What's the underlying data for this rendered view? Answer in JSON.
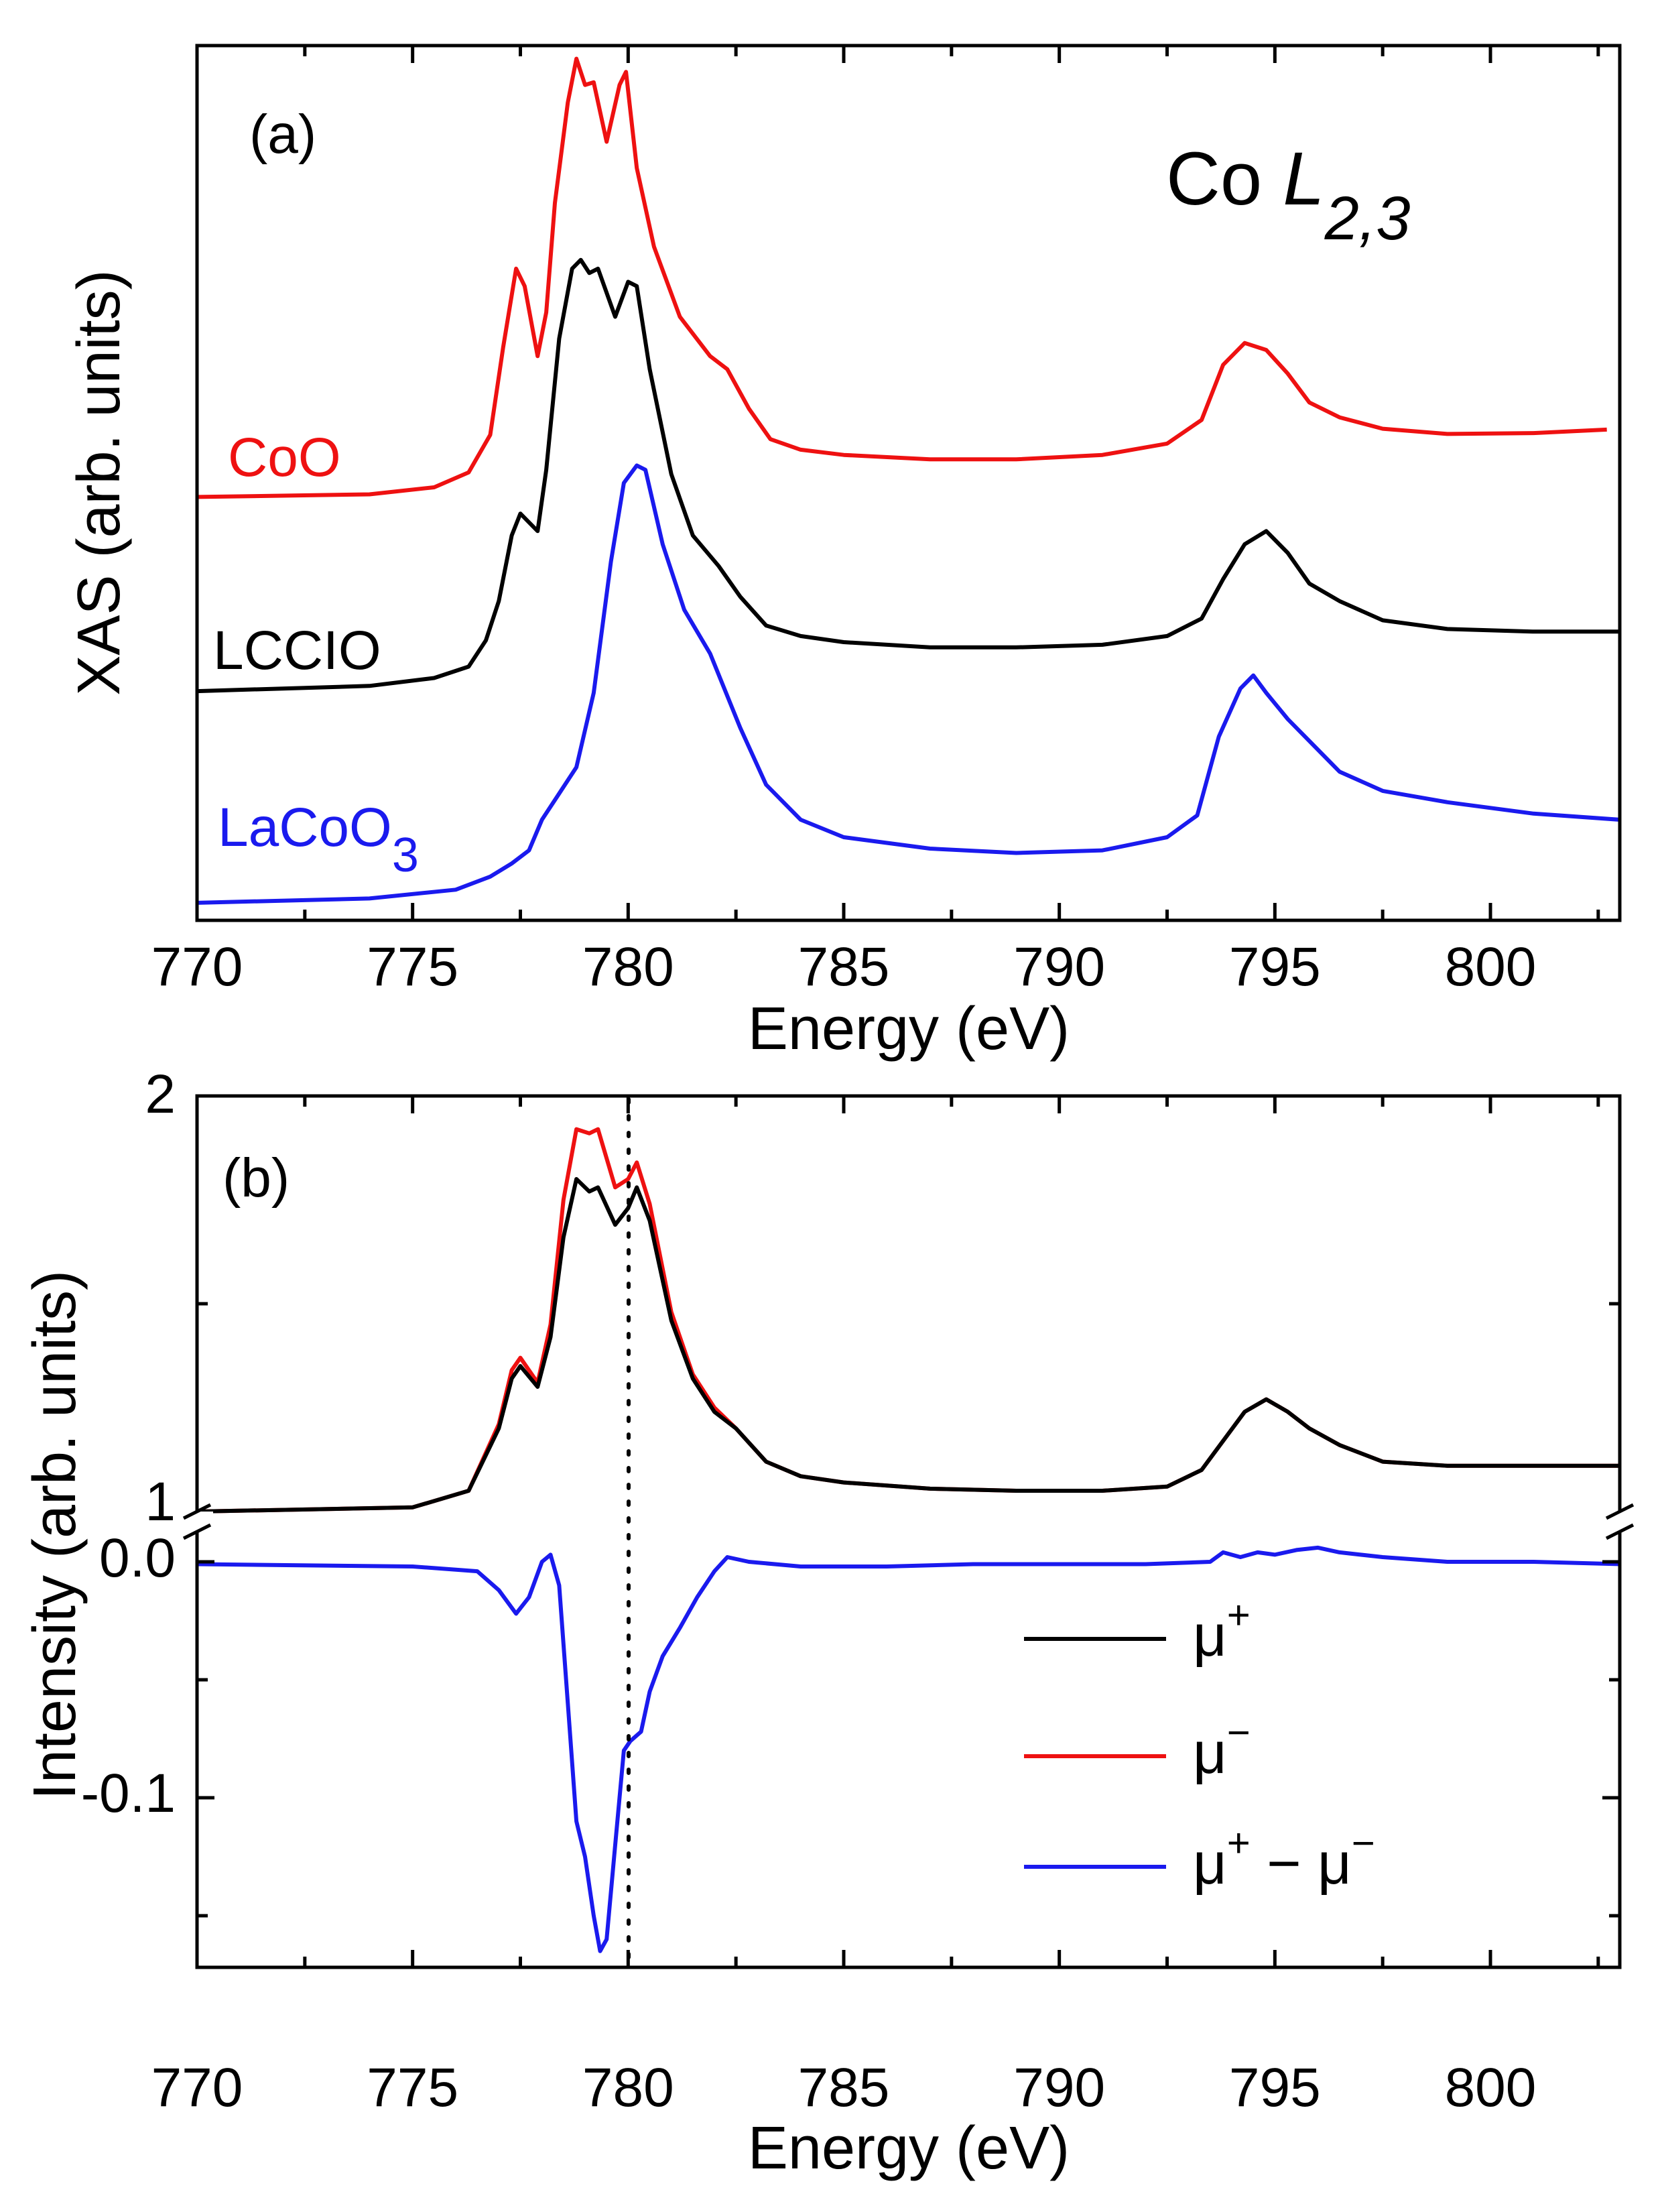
{
  "chart_data": [
    {
      "panel_label": "(a)",
      "type": "line",
      "title": "Co L2,3",
      "title_main": "Co ",
      "title_italic": "L",
      "title_sub": "2,3",
      "xlabel": "Energy (eV)",
      "ylabel": "XAS (arb. units)",
      "xlim": [
        770,
        803
      ],
      "ylim": [
        0,
        1
      ],
      "x_ticks": [
        770,
        775,
        780,
        785,
        790,
        795,
        800
      ],
      "x_tick_labels": [
        "770",
        "775",
        "780",
        "785",
        "790",
        "795",
        "800"
      ],
      "y_tick_labels_shown": false,
      "series": [
        {
          "name": "CoO",
          "label_main": "CoO",
          "label_sub": "",
          "color": "#ee1111",
          "points": [
            [
              770,
              0.484
            ],
            [
              774,
              0.487
            ],
            [
              775.5,
              0.495
            ],
            [
              776.3,
              0.512
            ],
            [
              776.8,
              0.555
            ],
            [
              777.1,
              0.655
            ],
            [
              777.4,
              0.745
            ],
            [
              777.6,
              0.725
            ],
            [
              777.9,
              0.645
            ],
            [
              778.1,
              0.695
            ],
            [
              778.3,
              0.82
            ],
            [
              778.6,
              0.935
            ],
            [
              778.8,
              0.985
            ],
            [
              779.0,
              0.955
            ],
            [
              779.2,
              0.958
            ],
            [
              779.5,
              0.89
            ],
            [
              779.8,
              0.955
            ],
            [
              779.95,
              0.97
            ],
            [
              780.2,
              0.86
            ],
            [
              780.6,
              0.77
            ],
            [
              781.2,
              0.69
            ],
            [
              781.9,
              0.645
            ],
            [
              782.3,
              0.63
            ],
            [
              782.8,
              0.585
            ],
            [
              783.3,
              0.55
            ],
            [
              784,
              0.538
            ],
            [
              785,
              0.532
            ],
            [
              787,
              0.527
            ],
            [
              789,
              0.527
            ],
            [
              791,
              0.532
            ],
            [
              792.5,
              0.545
            ],
            [
              793.3,
              0.572
            ],
            [
              793.8,
              0.635
            ],
            [
              794.3,
              0.66
            ],
            [
              794.8,
              0.652
            ],
            [
              795.3,
              0.625
            ],
            [
              795.8,
              0.592
            ],
            [
              796.5,
              0.575
            ],
            [
              797.5,
              0.562
            ],
            [
              799,
              0.556
            ],
            [
              801,
              0.557
            ],
            [
              802.7,
              0.561
            ]
          ]
        },
        {
          "name": "LCCIO",
          "label_main": "LCCIO",
          "label_sub": "",
          "color": "#000000",
          "points": [
            [
              770,
              0.262
            ],
            [
              774,
              0.268
            ],
            [
              775.5,
              0.277
            ],
            [
              776.3,
              0.29
            ],
            [
              776.7,
              0.32
            ],
            [
              777.0,
              0.365
            ],
            [
              777.3,
              0.44
            ],
            [
              777.5,
              0.465
            ],
            [
              777.9,
              0.445
            ],
            [
              778.1,
              0.515
            ],
            [
              778.4,
              0.665
            ],
            [
              778.7,
              0.745
            ],
            [
              778.9,
              0.755
            ],
            [
              779.1,
              0.74
            ],
            [
              779.3,
              0.745
            ],
            [
              779.7,
              0.69
            ],
            [
              780.0,
              0.73
            ],
            [
              780.2,
              0.725
            ],
            [
              780.5,
              0.63
            ],
            [
              781.0,
              0.51
            ],
            [
              781.5,
              0.44
            ],
            [
              782.1,
              0.405
            ],
            [
              782.6,
              0.37
            ],
            [
              783.2,
              0.337
            ],
            [
              784,
              0.325
            ],
            [
              785,
              0.318
            ],
            [
              787,
              0.312
            ],
            [
              789,
              0.312
            ],
            [
              791,
              0.315
            ],
            [
              792.5,
              0.325
            ],
            [
              793.3,
              0.345
            ],
            [
              793.8,
              0.39
            ],
            [
              794.3,
              0.43
            ],
            [
              794.8,
              0.445
            ],
            [
              795.3,
              0.42
            ],
            [
              795.8,
              0.385
            ],
            [
              796.5,
              0.365
            ],
            [
              797.5,
              0.343
            ],
            [
              799,
              0.333
            ],
            [
              801,
              0.33
            ],
            [
              803,
              0.33
            ]
          ]
        },
        {
          "name": "LaCoO3",
          "label_main": "LaCoO",
          "label_sub": "3",
          "color": "#1a1aee",
          "points": [
            [
              770,
              0.02
            ],
            [
              774,
              0.025
            ],
            [
              776,
              0.035
            ],
            [
              776.8,
              0.05
            ],
            [
              777.3,
              0.065
            ],
            [
              777.7,
              0.08
            ],
            [
              778.0,
              0.115
            ],
            [
              778.4,
              0.145
            ],
            [
              778.8,
              0.175
            ],
            [
              779.2,
              0.26
            ],
            [
              779.6,
              0.41
            ],
            [
              779.9,
              0.5
            ],
            [
              780.2,
              0.52
            ],
            [
              780.4,
              0.515
            ],
            [
              780.8,
              0.43
            ],
            [
              781.3,
              0.355
            ],
            [
              781.9,
              0.305
            ],
            [
              782.6,
              0.22
            ],
            [
              783.2,
              0.155
            ],
            [
              784,
              0.115
            ],
            [
              785,
              0.095
            ],
            [
              787,
              0.082
            ],
            [
              789,
              0.077
            ],
            [
              791,
              0.08
            ],
            [
              792.5,
              0.095
            ],
            [
              793.2,
              0.12
            ],
            [
              793.7,
              0.21
            ],
            [
              794.2,
              0.265
            ],
            [
              794.5,
              0.28
            ],
            [
              794.8,
              0.26
            ],
            [
              795.3,
              0.23
            ],
            [
              795.8,
              0.205
            ],
            [
              796.5,
              0.17
            ],
            [
              797.5,
              0.148
            ],
            [
              799,
              0.135
            ],
            [
              801,
              0.122
            ],
            [
              803,
              0.115
            ]
          ]
        }
      ]
    },
    {
      "panel_label": "(b)",
      "type": "line",
      "title": "",
      "xlabel": "Energy (eV)",
      "ylabel": "Intensity (arb. units)",
      "xlim": [
        770,
        803
      ],
      "x_ticks": [
        770,
        775,
        780,
        785,
        790,
        795,
        800
      ],
      "x_tick_labels": [
        "770",
        "775",
        "780",
        "785",
        "790",
        "795",
        "800"
      ],
      "axis_break": true,
      "upper_ylim": [
        1,
        2
      ],
      "upper_y_tick_labels": [
        "1",
        "2"
      ],
      "lower_ylim": [
        -0.17,
        0.01
      ],
      "lower_y_tick_labels": [
        "0.0",
        "-0.1"
      ],
      "reference_line": {
        "x": 780,
        "style": "dotted"
      },
      "legend_position": "bottom-right",
      "series": [
        {
          "name": "μ+",
          "legend_main": "μ",
          "legend_sup": "+",
          "color": "#000000",
          "axis": "upper",
          "points": [
            [
              770,
              1.0
            ],
            [
              775,
              1.01
            ],
            [
              776.3,
              1.05
            ],
            [
              777.0,
              1.2
            ],
            [
              777.3,
              1.32
            ],
            [
              777.5,
              1.35
            ],
            [
              777.9,
              1.3
            ],
            [
              778.2,
              1.42
            ],
            [
              778.5,
              1.66
            ],
            [
              778.8,
              1.8
            ],
            [
              779.1,
              1.77
            ],
            [
              779.3,
              1.78
            ],
            [
              779.7,
              1.69
            ],
            [
              780.0,
              1.73
            ],
            [
              780.2,
              1.78
            ],
            [
              780.5,
              1.7
            ],
            [
              781.0,
              1.46
            ],
            [
              781.5,
              1.32
            ],
            [
              782.0,
              1.24
            ],
            [
              782.5,
              1.2
            ],
            [
              783.2,
              1.12
            ],
            [
              784,
              1.085
            ],
            [
              785,
              1.07
            ],
            [
              787,
              1.055
            ],
            [
              789,
              1.05
            ],
            [
              791,
              1.05
            ],
            [
              792.5,
              1.06
            ],
            [
              793.3,
              1.1
            ],
            [
              793.8,
              1.17
            ],
            [
              794.3,
              1.24
            ],
            [
              794.8,
              1.27
            ],
            [
              795.3,
              1.24
            ],
            [
              795.8,
              1.2
            ],
            [
              796.5,
              1.16
            ],
            [
              797.5,
              1.12
            ],
            [
              799,
              1.11
            ],
            [
              801,
              1.11
            ],
            [
              803,
              1.11
            ]
          ]
        },
        {
          "name": "μ−",
          "legend_main": "μ",
          "legend_sup": "−",
          "color": "#ee1111",
          "axis": "upper",
          "points": [
            [
              770,
              1.0
            ],
            [
              775,
              1.01
            ],
            [
              776.3,
              1.05
            ],
            [
              777.0,
              1.21
            ],
            [
              777.3,
              1.34
            ],
            [
              777.5,
              1.37
            ],
            [
              777.9,
              1.31
            ],
            [
              778.2,
              1.45
            ],
            [
              778.5,
              1.75
            ],
            [
              778.8,
              1.92
            ],
            [
              779.1,
              1.91
            ],
            [
              779.3,
              1.92
            ],
            [
              779.7,
              1.78
            ],
            [
              780.0,
              1.8
            ],
            [
              780.2,
              1.84
            ],
            [
              780.5,
              1.74
            ],
            [
              781.0,
              1.48
            ],
            [
              781.5,
              1.33
            ],
            [
              782.0,
              1.25
            ],
            [
              782.5,
              1.2
            ],
            [
              783.2,
              1.12
            ],
            [
              784,
              1.085
            ],
            [
              785,
              1.07
            ],
            [
              787,
              1.055
            ],
            [
              789,
              1.05
            ],
            [
              791,
              1.05
            ],
            [
              792.5,
              1.06
            ],
            [
              793.3,
              1.1
            ],
            [
              793.8,
              1.17
            ],
            [
              794.3,
              1.24
            ],
            [
              794.8,
              1.27
            ],
            [
              795.3,
              1.24
            ],
            [
              795.8,
              1.2
            ],
            [
              796.5,
              1.16
            ],
            [
              797.5,
              1.12
            ],
            [
              799,
              1.11
            ],
            [
              801,
              1.11
            ],
            [
              803,
              1.11
            ]
          ]
        },
        {
          "name": "μ+ − μ−",
          "legend_main": "μ",
          "legend_sup": "+",
          "legend_mid": " − μ",
          "legend_sup2": "−",
          "color": "#1a1aee",
          "axis": "lower",
          "points": [
            [
              770,
              -0.001
            ],
            [
              775,
              -0.002
            ],
            [
              776.5,
              -0.004
            ],
            [
              777.0,
              -0.012
            ],
            [
              777.4,
              -0.022
            ],
            [
              777.7,
              -0.015
            ],
            [
              778.0,
              0.0
            ],
            [
              778.2,
              0.003
            ],
            [
              778.4,
              -0.01
            ],
            [
              778.6,
              -0.06
            ],
            [
              778.8,
              -0.11
            ],
            [
              779.0,
              -0.125
            ],
            [
              779.2,
              -0.15
            ],
            [
              779.35,
              -0.165
            ],
            [
              779.5,
              -0.16
            ],
            [
              779.7,
              -0.12
            ],
            [
              779.9,
              -0.08
            ],
            [
              780.05,
              -0.076
            ],
            [
              780.3,
              -0.072
            ],
            [
              780.5,
              -0.055
            ],
            [
              780.8,
              -0.04
            ],
            [
              781.2,
              -0.028
            ],
            [
              781.6,
              -0.015
            ],
            [
              782.0,
              -0.004
            ],
            [
              782.3,
              0.002
            ],
            [
              782.8,
              0.0
            ],
            [
              784,
              -0.002
            ],
            [
              786,
              -0.002
            ],
            [
              788,
              -0.001
            ],
            [
              790,
              -0.001
            ],
            [
              792,
              -0.001
            ],
            [
              793.5,
              0.0
            ],
            [
              793.8,
              0.004
            ],
            [
              794.2,
              0.002
            ],
            [
              794.6,
              0.004
            ],
            [
              795.0,
              0.003
            ],
            [
              795.5,
              0.005
            ],
            [
              796.0,
              0.006
            ],
            [
              796.5,
              0.004
            ],
            [
              797.5,
              0.002
            ],
            [
              799,
              0.0
            ],
            [
              801,
              0.0
            ],
            [
              803,
              -0.001
            ]
          ]
        }
      ]
    }
  ]
}
